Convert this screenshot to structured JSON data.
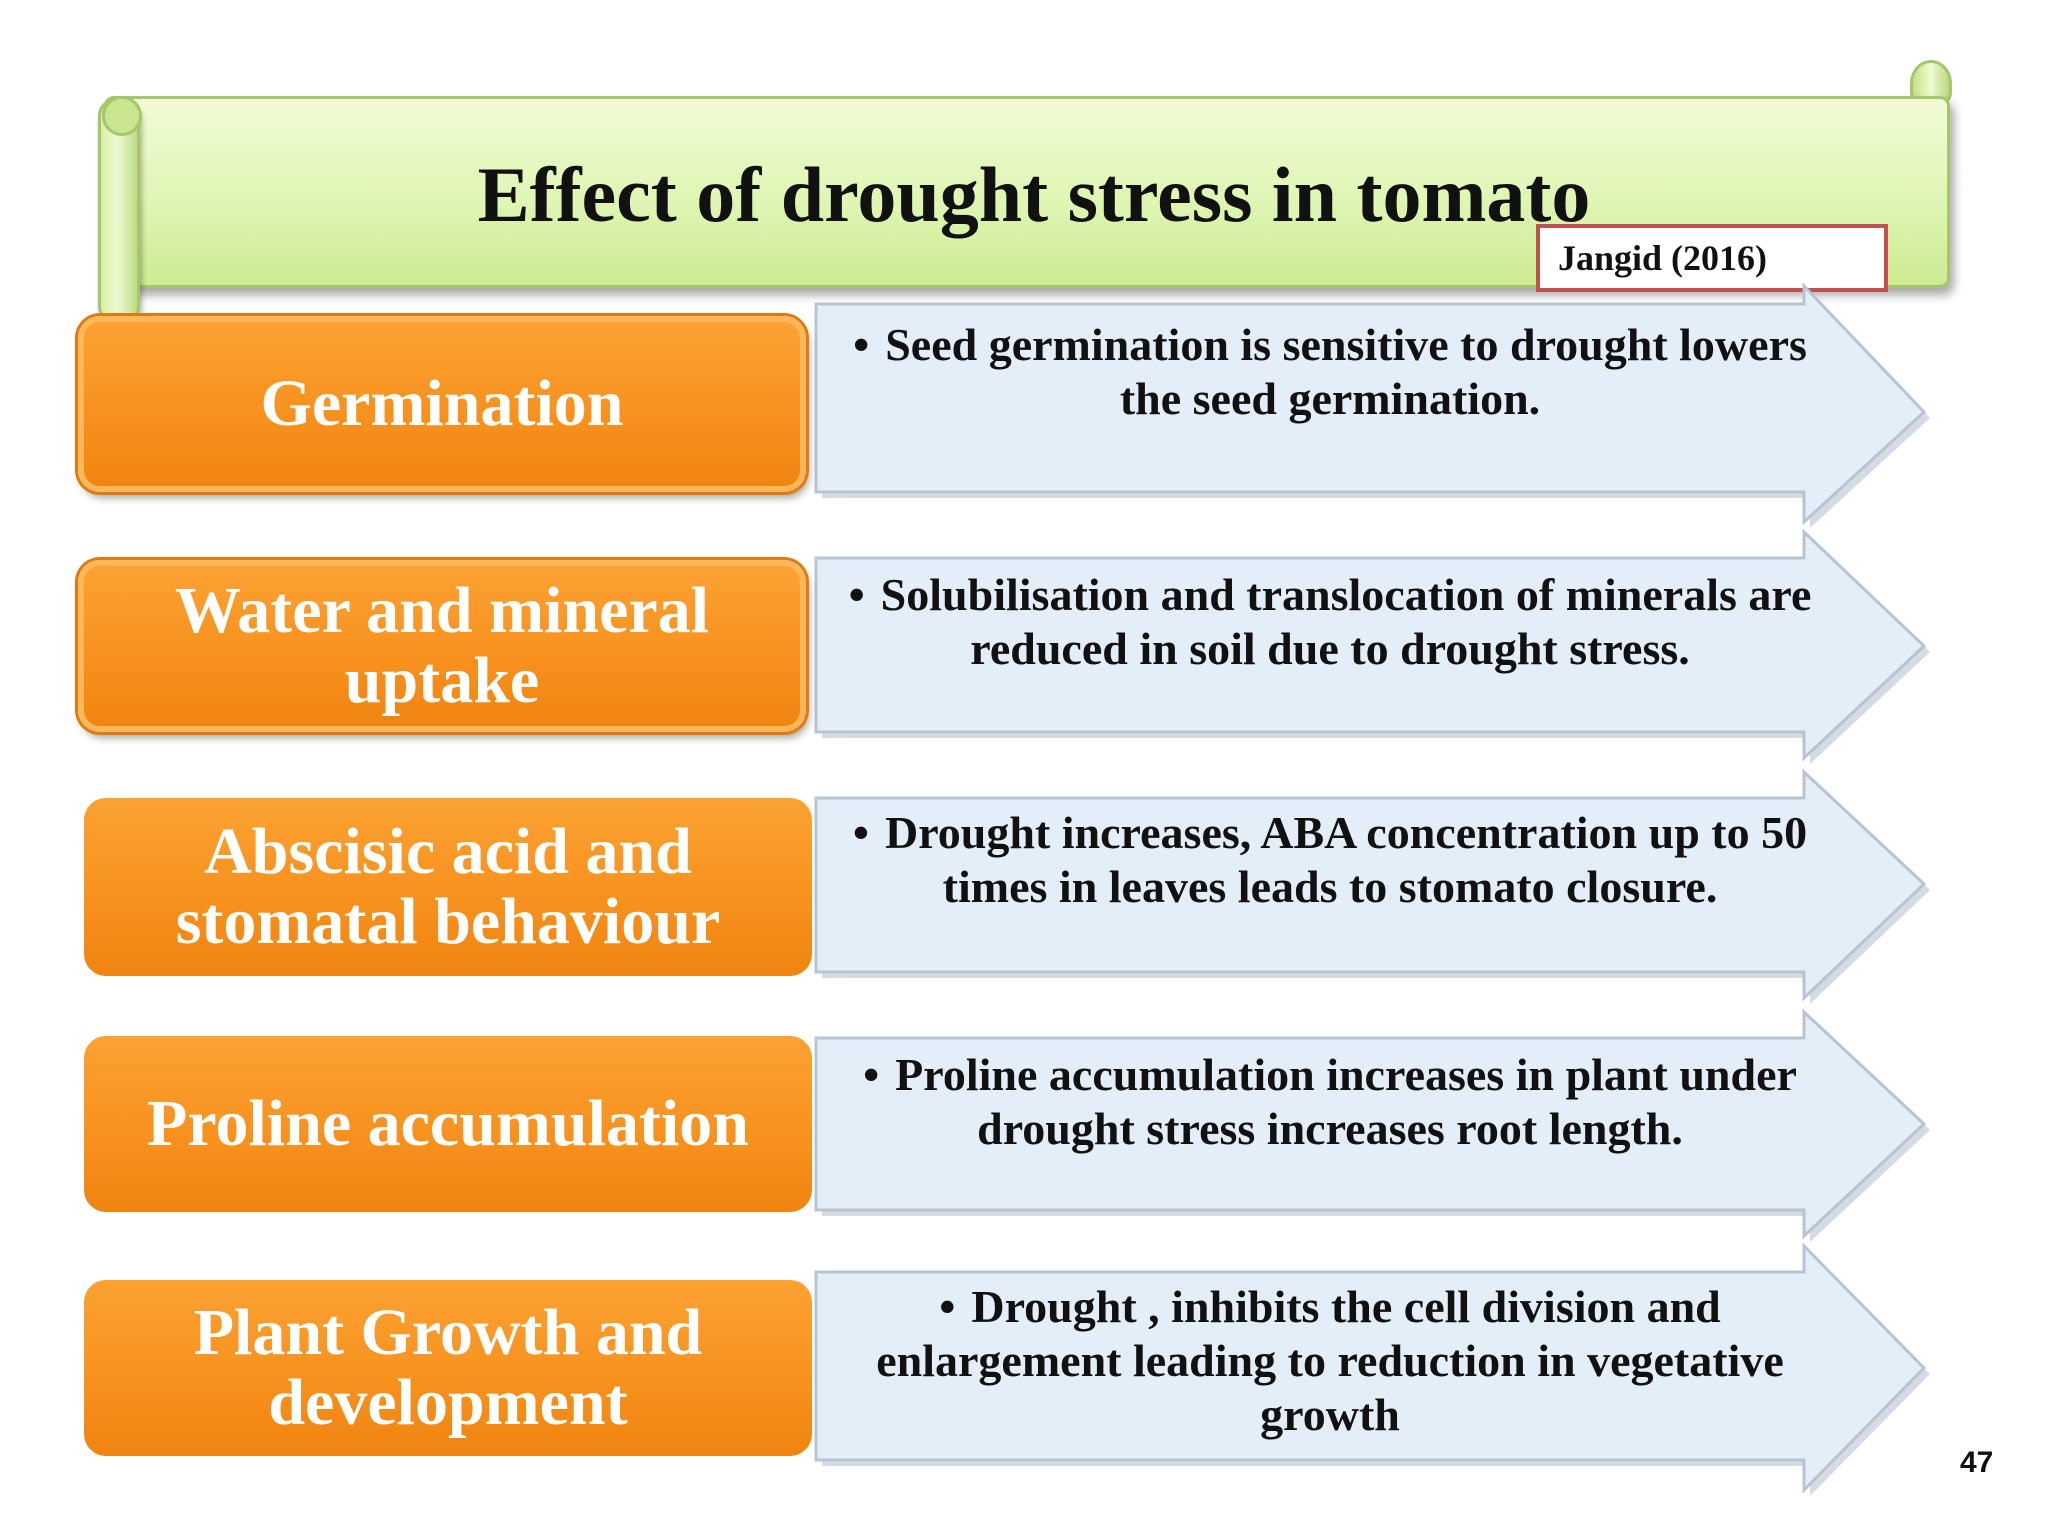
{
  "slide": {
    "title": "Effect of drought stress in tomato",
    "citation": "Jangid (2016)",
    "page_number": "47",
    "colors": {
      "label_orange": "#f7901d",
      "arrow_fill": "#e4eef8",
      "scroll_green": "#dff6b4",
      "citation_border": "#c0504d"
    },
    "bullet_symbol": "•",
    "rows": [
      {
        "label": "Germination",
        "description": "Seed germination is  sensitive to drought lowers the seed germination."
      },
      {
        "label": "Water and mineral uptake",
        "description": "Solubilisation and translocation of minerals are reduced in soil  due to drought stress."
      },
      {
        "label": "Abscisic acid and stomatal behaviour",
        "description": "Drought increases, ABA concentration up to 50 times in  leaves leads to  stomato closure."
      },
      {
        "label": "Proline accumulation",
        "description": "Proline accumulation increases in plant under drought stress increases root length."
      },
      {
        "label": "Plant Growth and development",
        "description": "Drought ,  inhibits the cell division and enlargement leading to reduction in vegetative growth"
      }
    ]
  }
}
